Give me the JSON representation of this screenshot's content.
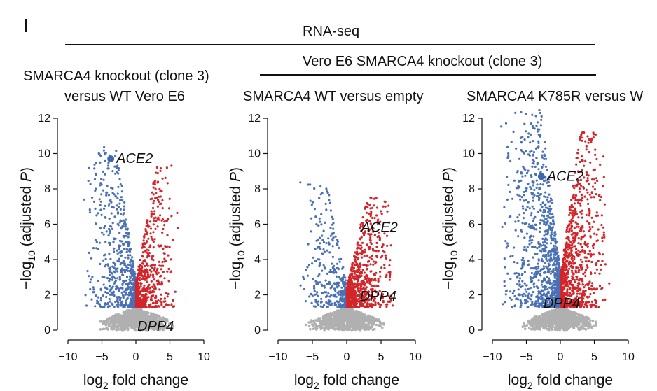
{
  "figure": {
    "panel_letter": "l",
    "header_top": "RNA-seq",
    "header_sub": "Vero E6 SMARCA4 knockout (clone 3)"
  },
  "colors": {
    "down": "#4a70b5",
    "up": "#d2262b",
    "ns": "#b0b0b0",
    "axis": "#111111",
    "highlight": "#3f67b0"
  },
  "chart_data": [
    {
      "type": "scatter",
      "title_line1": "SMARCA4 knockout (clone 3)",
      "title_line2": "versus WT Vero E6",
      "xlabel_base": "log",
      "xlabel_sub": "2",
      "xlabel_rest": " fold change",
      "ylabel_pre": "−log",
      "ylabel_sub": "10",
      "ylabel_mid": " (adjusted ",
      "ylabel_ital": "P",
      "ylabel_post": ")",
      "xlim": [
        -10,
        10
      ],
      "ylim": [
        0,
        12
      ],
      "xticks": [
        "−10",
        "−5",
        "0",
        "5",
        "10"
      ],
      "xtick_values": [
        -10,
        -5,
        0,
        5,
        10
      ],
      "yticks": [
        "0",
        "2",
        "4",
        "6",
        "8",
        "10",
        "12"
      ],
      "ytick_values": [
        0,
        2,
        4,
        6,
        8,
        10,
        12
      ],
      "threshold": 1.3,
      "cloud": {
        "seed": 11,
        "down_n": 720,
        "up_n": 640,
        "ns_n": 900,
        "dspread": 4.0,
        "uspread": 3.3,
        "ymax": 10.4
      },
      "annotations": [
        {
          "label": "ACE2",
          "x": -3.7,
          "y": 9.7,
          "highlight": true
        },
        {
          "label": "DPP4",
          "x": -0.2,
          "y": 0.2,
          "highlight": false
        }
      ]
    },
    {
      "type": "scatter",
      "title_line1": "",
      "title_line2": "SMARCA4 WT versus empty",
      "xlabel_base": "log",
      "xlabel_sub": "2",
      "xlabel_rest": " fold change",
      "ylabel_pre": "−log",
      "ylabel_sub": "10",
      "ylabel_mid": " (adjusted ",
      "ylabel_ital": "P",
      "ylabel_post": ")",
      "xlim": [
        -10,
        10
      ],
      "ylim": [
        0,
        12
      ],
      "xticks": [
        "−10",
        "−5",
        "0",
        "5",
        "10"
      ],
      "xtick_values": [
        -10,
        -5,
        0,
        5,
        10
      ],
      "yticks": [
        "0",
        "2",
        "4",
        "6",
        "8",
        "10",
        "12"
      ],
      "ytick_values": [
        0,
        2,
        4,
        6,
        8,
        10,
        12
      ],
      "threshold": 1.3,
      "cloud": {
        "seed": 23,
        "down_n": 360,
        "up_n": 820,
        "ns_n": 900,
        "dspread": 3.6,
        "uspread": 3.6,
        "ymax": 8.4
      },
      "annotations": [
        {
          "label": "ACE2",
          "x": 1.7,
          "y": 5.8,
          "highlight": false
        },
        {
          "label": "DPP4",
          "x": 1.5,
          "y": 1.9,
          "highlight": false
        }
      ]
    },
    {
      "type": "scatter",
      "title_line1": "",
      "title_line2": "SMARCA4 K785R versus W",
      "xlabel_base": "log",
      "xlabel_sub": "2",
      "xlabel_rest": " fold change",
      "ylabel_pre": "−log",
      "ylabel_sub": "10",
      "ylabel_mid": " (adjusted ",
      "ylabel_ital": "P",
      "ylabel_post": ")",
      "xlim": [
        -10,
        10
      ],
      "ylim": [
        0,
        12
      ],
      "xticks": [
        "−10",
        "−5",
        "0",
        "5",
        "10"
      ],
      "xtick_values": [
        -10,
        -5,
        0,
        5,
        10
      ],
      "yticks": [
        "0",
        "2",
        "4",
        "6",
        "8",
        "10",
        "12"
      ],
      "ytick_values": [
        0,
        2,
        4,
        6,
        8,
        10,
        12
      ],
      "threshold": 1.3,
      "cloud": {
        "seed": 37,
        "down_n": 1100,
        "up_n": 1000,
        "ns_n": 900,
        "dspread": 4.6,
        "uspread": 3.6,
        "ymax": 12.6
      },
      "annotations": [
        {
          "label": "ACE2",
          "x": -2.8,
          "y": 8.7,
          "highlight": true
        },
        {
          "label": "DPP4",
          "x": -2.9,
          "y": 1.5,
          "highlight": false
        }
      ]
    }
  ]
}
